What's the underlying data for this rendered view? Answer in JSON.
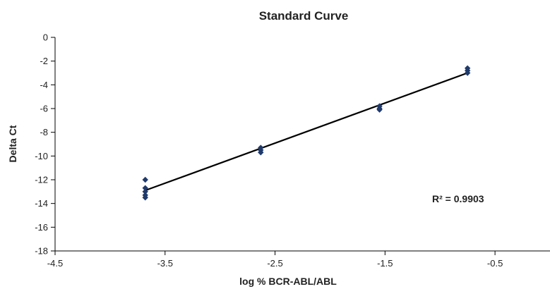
{
  "chart_data": {
    "type": "scatter",
    "title": "Standard Curve",
    "xlabel": "log % BCR-ABL/ABL",
    "ylabel": "Delta Ct",
    "xlim": [
      -4.5,
      0.0
    ],
    "ylim": [
      -18,
      0
    ],
    "xticks": [
      -4.5,
      -3.5,
      -2.5,
      -1.5,
      -0.5
    ],
    "yticks": [
      0,
      -2,
      -4,
      -6,
      -8,
      -10,
      -12,
      -14,
      -16,
      -18
    ],
    "xtick_labels": [
      "-4.5",
      "-3.5",
      "-2.5",
      "-1.5",
      "-0.5"
    ],
    "ytick_labels": [
      "0",
      "-2",
      "-4",
      "-6",
      "-8",
      "-10",
      "-12",
      "-14",
      "-16",
      "-18"
    ],
    "grid": false,
    "marker_color": "#1f3a6b",
    "line_color": "#000000",
    "series": [
      {
        "points": [
          {
            "x": -3.68,
            "y": -12.0
          },
          {
            "x": -3.68,
            "y": -12.7
          },
          {
            "x": -3.68,
            "y": -13.0
          },
          {
            "x": -3.68,
            "y": -13.3
          },
          {
            "x": -3.68,
            "y": -13.5
          },
          {
            "x": -2.63,
            "y": -9.3
          },
          {
            "x": -2.63,
            "y": -9.5
          },
          {
            "x": -2.63,
            "y": -9.7
          },
          {
            "x": -1.55,
            "y": -5.8
          },
          {
            "x": -1.55,
            "y": -6.0
          },
          {
            "x": -1.55,
            "y": -6.1
          },
          {
            "x": -0.75,
            "y": -2.6
          },
          {
            "x": -0.75,
            "y": -2.8
          },
          {
            "x": -0.75,
            "y": -3.0
          }
        ]
      }
    ],
    "trendline": {
      "x": [
        -3.68,
        -0.75
      ],
      "y": [
        -12.9,
        -3.0
      ]
    },
    "annotation": "R² = 0.9903"
  }
}
